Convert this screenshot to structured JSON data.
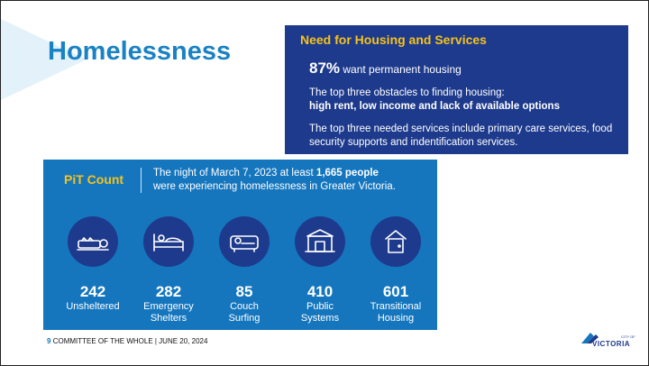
{
  "title": "Homelessness",
  "need": {
    "title": "Need for Housing and Services",
    "stat_pct": "87%",
    "stat_text": "want permanent housing",
    "obstacles_intro": "The top three obstacles to finding housing:",
    "obstacles_bold": "high rent, low income and lack of available options",
    "services_text": "The top three needed services include primary care services, food security supports and indentification services."
  },
  "pit": {
    "title": "PiT Count",
    "desc_pre": "The night of March 7, 2023 at least ",
    "desc_bold": "1,665 people",
    "desc_post": "were experiencing homelessness in Greater Victoria.",
    "stats": [
      {
        "value": "242",
        "label_line1": "Unsheltered",
        "label_line2": "",
        "icon": "sleeping-person-icon"
      },
      {
        "value": "282",
        "label_line1": "Emergency",
        "label_line2": "Shelters",
        "icon": "bed-icon"
      },
      {
        "value": "85",
        "label_line1": "Couch",
        "label_line2": "Surfing",
        "icon": "couch-icon"
      },
      {
        "value": "410",
        "label_line1": "Public",
        "label_line2": "Systems",
        "icon": "building-icon"
      },
      {
        "value": "601",
        "label_line1": "Transitional",
        "label_line2": "Housing",
        "icon": "door-icon"
      }
    ]
  },
  "footer": {
    "page_number": "9",
    "text": "COMMITTEE OF THE WHOLE |  JUNE 20, 2024"
  },
  "logo": {
    "city": "CITY OF",
    "name": "VICTORIA"
  },
  "colors": {
    "title_blue": "#1a82c4",
    "navy": "#1e3a8c",
    "pit_blue": "#1576be",
    "yellow": "#f6c21c"
  }
}
